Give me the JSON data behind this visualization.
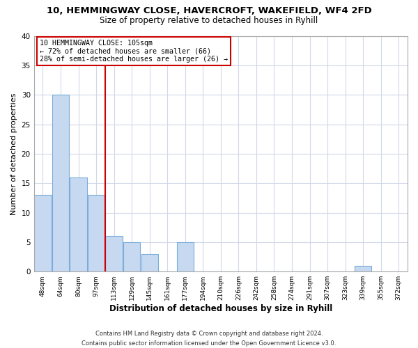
{
  "title": "10, HEMMINGWAY CLOSE, HAVERCROFT, WAKEFIELD, WF4 2FD",
  "subtitle": "Size of property relative to detached houses in Ryhill",
  "xlabel": "Distribution of detached houses by size in Ryhill",
  "ylabel": "Number of detached properties",
  "bin_labels": [
    "48sqm",
    "64sqm",
    "80sqm",
    "97sqm",
    "113sqm",
    "129sqm",
    "145sqm",
    "161sqm",
    "177sqm",
    "194sqm",
    "210sqm",
    "226sqm",
    "242sqm",
    "258sqm",
    "274sqm",
    "291sqm",
    "307sqm",
    "323sqm",
    "339sqm",
    "355sqm",
    "372sqm"
  ],
  "bar_heights": [
    13,
    30,
    16,
    13,
    6,
    5,
    3,
    0,
    5,
    0,
    0,
    0,
    0,
    0,
    0,
    0,
    0,
    0,
    1,
    0,
    0
  ],
  "bar_color": "#c6d9f0",
  "bar_edgecolor": "#7aaddb",
  "vline_x_idx": 3,
  "vline_color": "#cc0000",
  "annotation_text": "10 HEMMINGWAY CLOSE: 105sqm\n← 72% of detached houses are smaller (66)\n28% of semi-detached houses are larger (26) →",
  "annotation_box_edgecolor": "#cc0000",
  "ylim": [
    0,
    40
  ],
  "yticks": [
    0,
    5,
    10,
    15,
    20,
    25,
    30,
    35,
    40
  ],
  "footer": "Contains HM Land Registry data © Crown copyright and database right 2024.\nContains public sector information licensed under the Open Government Licence v3.0.",
  "bg_color": "#ffffff",
  "grid_color": "#d0d8e8"
}
